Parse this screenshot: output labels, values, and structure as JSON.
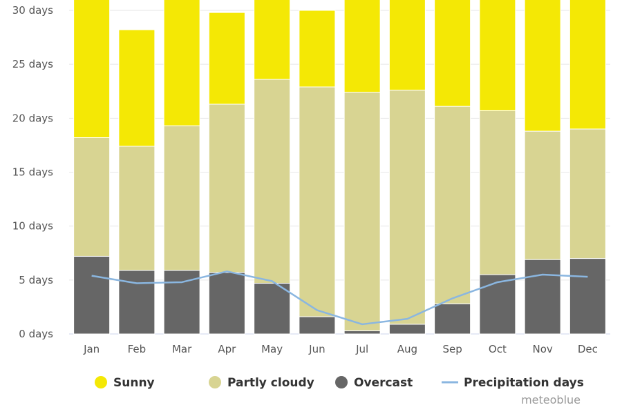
{
  "chart_data": {
    "type": "bar",
    "stacked": true,
    "categories": [
      "Jan",
      "Feb",
      "Mar",
      "Apr",
      "May",
      "Jun",
      "Jul",
      "Aug",
      "Sep",
      "Oct",
      "Nov",
      "Dec"
    ],
    "y_ticks": [
      "0 days",
      "5 days",
      "10 days",
      "15 days",
      "20 days",
      "25 days",
      "30 days"
    ],
    "ylim": [
      0,
      30
    ],
    "grid": true,
    "legend_position": "bottom",
    "series": [
      {
        "name": "Overcast",
        "kind": "bar",
        "color": "#666666",
        "values": [
          7.2,
          5.9,
          5.9,
          5.7,
          4.7,
          1.6,
          0.3,
          0.9,
          2.8,
          5.5,
          6.9,
          7.0
        ]
      },
      {
        "name": "Partly cloudy",
        "kind": "bar",
        "color": "#d8d492",
        "values": [
          11.0,
          11.5,
          13.4,
          15.6,
          18.9,
          21.3,
          22.1,
          21.7,
          18.3,
          15.2,
          11.9,
          12.0
        ]
      },
      {
        "name": "Sunny",
        "kind": "bar",
        "color": "#f4e805",
        "values": [
          12.8,
          10.8,
          11.7,
          8.5,
          7.4,
          7.1,
          8.6,
          8.4,
          9.9,
          10.3,
          12.2,
          12.0
        ]
      },
      {
        "name": "Precipitation days",
        "kind": "line",
        "color": "#8ab6e0",
        "values": [
          5.4,
          4.7,
          4.8,
          5.8,
          4.9,
          2.2,
          0.9,
          1.4,
          3.3,
          4.8,
          5.5,
          5.3
        ]
      }
    ],
    "legend": [
      {
        "label": "Sunny",
        "color": "#f4e805",
        "marker": "circle"
      },
      {
        "label": "Partly cloudy",
        "color": "#d8d492",
        "marker": "circle"
      },
      {
        "label": "Overcast",
        "color": "#666666",
        "marker": "circle"
      },
      {
        "label": "Precipitation days",
        "color": "#8ab6e0",
        "marker": "line"
      }
    ],
    "credit": "meteoblue"
  }
}
